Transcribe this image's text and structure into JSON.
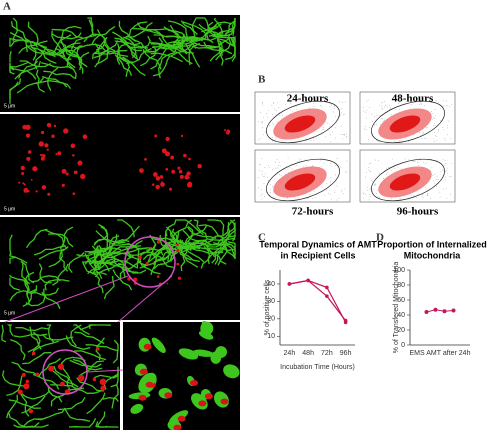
{
  "figure": {
    "panel_labels": [
      "A",
      "B",
      "C",
      "D"
    ],
    "scale_bars": [
      "5 μm",
      "5 μm",
      "5 μm"
    ],
    "flow_labels": [
      "24-hours",
      "48-hours",
      "72-hours",
      "96-hours"
    ]
  },
  "chart_data": [
    {
      "type": "line",
      "title_lines": [
        "Temporal Dynamics of AMT",
        "in Recipient Cells"
      ],
      "y_label": "% of positive cells",
      "x_label": "Incubation Time (Hours)",
      "categories": [
        "24h",
        "48h",
        "72h",
        "96h"
      ],
      "series": [
        {
          "color": "#c2185b",
          "values": [
            40,
            42,
            38,
            18
          ]
        },
        {
          "color": "#c2185b",
          "values": [
            40,
            42,
            33,
            19
          ]
        }
      ],
      "ylim": [
        5,
        48
      ],
      "yticks": [
        10,
        20,
        30,
        40
      ]
    },
    {
      "type": "scatter",
      "title_lines": [
        "Proportion of Internalized",
        "Mitochondria"
      ],
      "y_label": "% of Transfered Mitochondria",
      "categories": [
        "EMS AMT after 24h"
      ],
      "series": [
        {
          "color": "#c2185b",
          "values": [
            44,
            47,
            45,
            46
          ]
        }
      ],
      "ylim": [
        0,
        100
      ],
      "yticks": [
        0,
        20,
        40,
        60,
        80,
        100
      ]
    }
  ]
}
